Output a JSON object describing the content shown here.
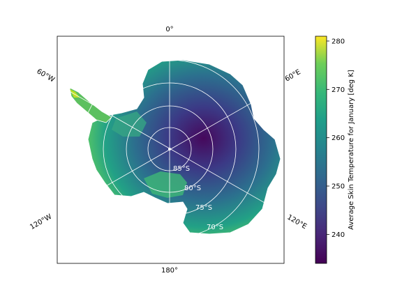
{
  "map": {
    "meridian_labels": {
      "top": "0°",
      "bottom": "180°",
      "upper_left": "60°W",
      "upper_right": "60°E",
      "lower_left": "120°W",
      "lower_right": "120°E"
    },
    "latitude_labels": [
      "85°S",
      "80°S",
      "75°S",
      "70°S"
    ],
    "projection": "south polar stereographic",
    "gridlines": true
  },
  "colorbar": {
    "label": "Average Skin Temperature for January [deg K]",
    "ticks": [
      "240",
      "250",
      "260",
      "270",
      "280"
    ],
    "range": [
      234,
      281
    ],
    "colormap": "viridis"
  },
  "colors": {
    "cmap_low": "#440154",
    "cmap_mid_low": "#3b528b",
    "cmap_mid": "#21918c",
    "cmap_mid_high": "#5ec962",
    "cmap_high": "#fde725",
    "grid": "#ffffff",
    "frame": "#000000"
  }
}
